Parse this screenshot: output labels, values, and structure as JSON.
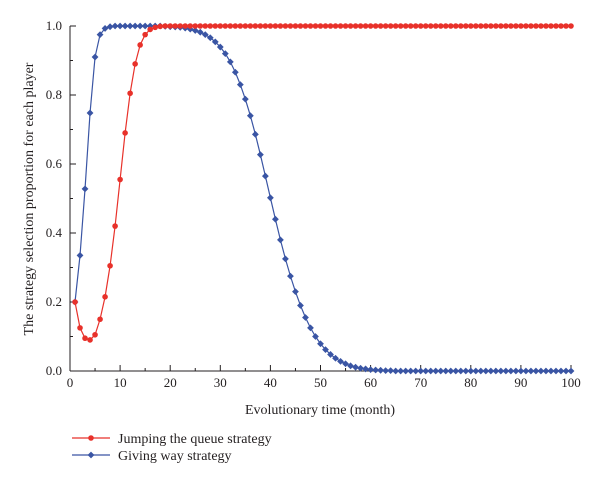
{
  "chart_data": {
    "type": "line",
    "xlabel": "Evolutionary time (month)",
    "ylabel": "The strategy selection proportion for each player",
    "xlim": [
      0,
      100
    ],
    "ylim": [
      0,
      1.0
    ],
    "xticks": [
      "0",
      "10",
      "20",
      "30",
      "40",
      "50",
      "60",
      "70",
      "80",
      "90",
      "100"
    ],
    "yticks": [
      "0.0",
      "0.2",
      "0.4",
      "0.6",
      "0.8",
      "1.0"
    ],
    "grid": false,
    "legend_position": "bottom-left",
    "series": [
      {
        "name": "Jumping the queue strategy",
        "color": "#e8312a",
        "marker": "circle",
        "x": [
          1,
          2,
          3,
          4,
          5,
          6,
          7,
          8,
          9,
          10,
          11,
          12,
          13,
          14,
          15,
          16,
          17,
          18,
          19,
          20,
          21,
          22,
          23,
          24,
          25,
          26,
          27,
          28,
          29,
          30,
          31,
          32,
          33,
          34,
          35,
          36,
          37,
          38,
          39,
          40,
          41,
          42,
          43,
          44,
          45,
          46,
          47,
          48,
          49,
          50,
          51,
          52,
          53,
          54,
          55,
          56,
          57,
          58,
          59,
          60,
          61,
          62,
          63,
          64,
          65,
          66,
          67,
          68,
          69,
          70,
          71,
          72,
          73,
          74,
          75,
          76,
          77,
          78,
          79,
          80,
          81,
          82,
          83,
          84,
          85,
          86,
          87,
          88,
          89,
          90,
          91,
          92,
          93,
          94,
          95,
          96,
          97,
          98,
          99,
          100
        ],
        "y": [
          0.2,
          0.125,
          0.095,
          0.09,
          0.105,
          0.15,
          0.215,
          0.305,
          0.42,
          0.555,
          0.69,
          0.805,
          0.89,
          0.945,
          0.975,
          0.99,
          0.996,
          0.999,
          1.0,
          1.0,
          1.0,
          1.0,
          1.0,
          1.0,
          1.0,
          1.0,
          1.0,
          1.0,
          1.0,
          1.0,
          1.0,
          1.0,
          1.0,
          1.0,
          1.0,
          1.0,
          1.0,
          1.0,
          1.0,
          1.0,
          1.0,
          1.0,
          1.0,
          1.0,
          1.0,
          1.0,
          1.0,
          1.0,
          1.0,
          1.0,
          1.0,
          1.0,
          1.0,
          1.0,
          1.0,
          1.0,
          1.0,
          1.0,
          1.0,
          1.0,
          1.0,
          1.0,
          1.0,
          1.0,
          1.0,
          1.0,
          1.0,
          1.0,
          1.0,
          1.0,
          1.0,
          1.0,
          1.0,
          1.0,
          1.0,
          1.0,
          1.0,
          1.0,
          1.0,
          1.0,
          1.0,
          1.0,
          1.0,
          1.0,
          1.0,
          1.0,
          1.0,
          1.0,
          1.0,
          1.0,
          1.0,
          1.0,
          1.0,
          1.0,
          1.0,
          1.0,
          1.0,
          1.0,
          1.0,
          1.0
        ]
      },
      {
        "name": "Giving way strategy",
        "color": "#3a55a4",
        "marker": "diamond",
        "x": [
          1,
          2,
          3,
          4,
          5,
          6,
          7,
          8,
          9,
          10,
          11,
          12,
          13,
          14,
          15,
          16,
          17,
          18,
          19,
          20,
          21,
          22,
          23,
          24,
          25,
          26,
          27,
          28,
          29,
          30,
          31,
          32,
          33,
          34,
          35,
          36,
          37,
          38,
          39,
          40,
          41,
          42,
          43,
          44,
          45,
          46,
          47,
          48,
          49,
          50,
          51,
          52,
          53,
          54,
          55,
          56,
          57,
          58,
          59,
          60,
          61,
          62,
          63,
          64,
          65,
          66,
          67,
          68,
          69,
          70,
          71,
          72,
          73,
          74,
          75,
          76,
          77,
          78,
          79,
          80,
          81,
          82,
          83,
          84,
          85,
          86,
          87,
          88,
          89,
          90,
          91,
          92,
          93,
          94,
          95,
          96,
          97,
          98,
          99,
          100
        ],
        "y": [
          0.2,
          0.335,
          0.528,
          0.748,
          0.91,
          0.975,
          0.993,
          0.998,
          1.0,
          1.0,
          1.0,
          1.0,
          1.0,
          1.0,
          1.0,
          1.0,
          1.0,
          1.0,
          0.999,
          0.998,
          0.997,
          0.996,
          0.994,
          0.991,
          0.987,
          0.982,
          0.975,
          0.966,
          0.954,
          0.939,
          0.92,
          0.896,
          0.866,
          0.83,
          0.788,
          0.74,
          0.686,
          0.627,
          0.565,
          0.502,
          0.44,
          0.38,
          0.325,
          0.275,
          0.23,
          0.19,
          0.155,
          0.125,
          0.1,
          0.079,
          0.062,
          0.048,
          0.037,
          0.028,
          0.021,
          0.015,
          0.011,
          0.008,
          0.006,
          0.004,
          0.003,
          0.002,
          0.001,
          0.001,
          0.0,
          0.0,
          0.0,
          0.0,
          0.0,
          0.0,
          0.0,
          0.0,
          0.0,
          0.0,
          0.0,
          0.0,
          0.0,
          0.0,
          0.0,
          0.0,
          0.0,
          0.0,
          0.0,
          0.0,
          0.0,
          0.0,
          0.0,
          0.0,
          0.0,
          0.0,
          0.0,
          0.0,
          0.0,
          0.0,
          0.0,
          0.0,
          0.0,
          0.0,
          0.0,
          0.0
        ]
      }
    ]
  }
}
